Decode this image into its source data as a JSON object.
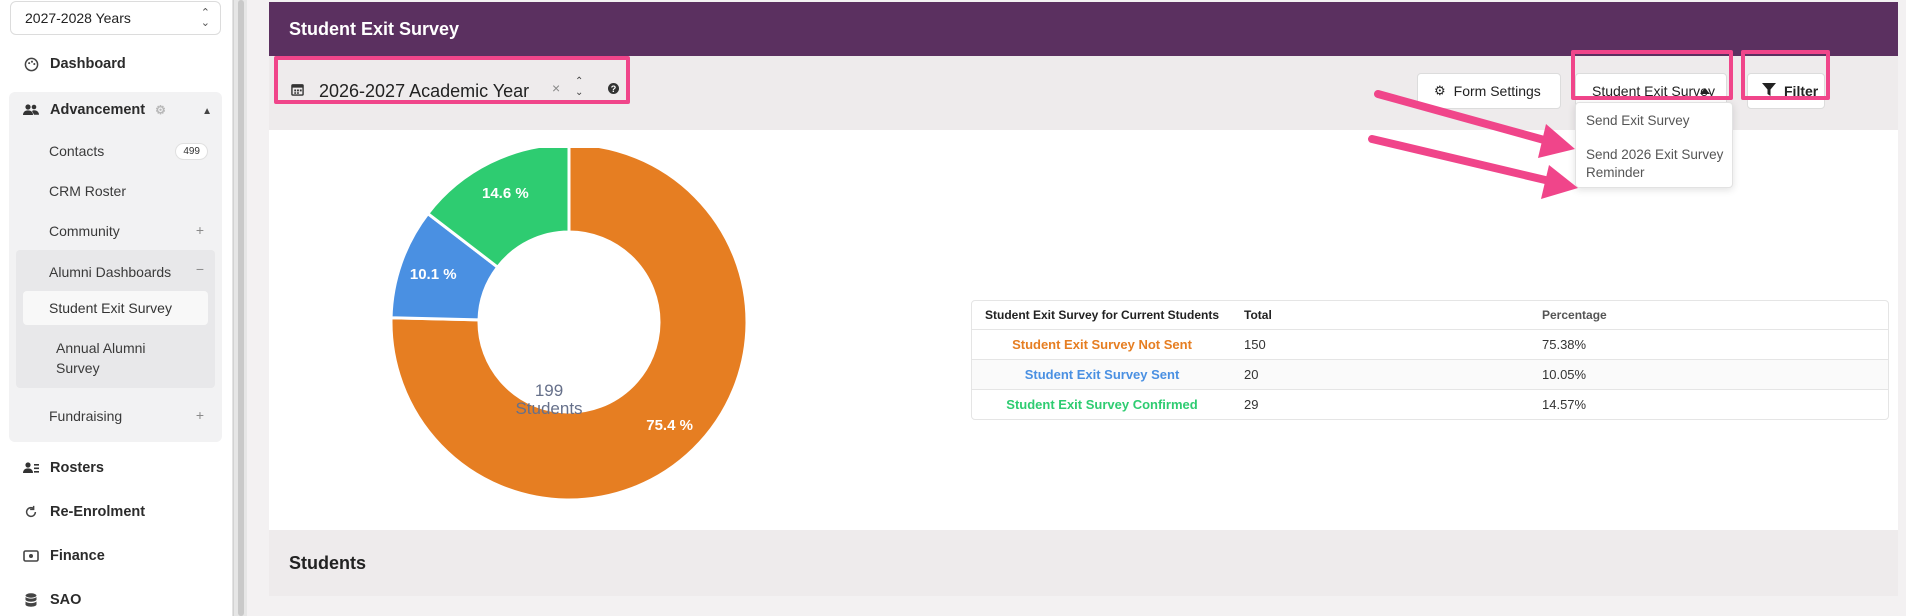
{
  "sidebar": {
    "year_select": "2027-2028 Years",
    "dashboard": "Dashboard",
    "advancement": "Advancement",
    "contacts": "Contacts",
    "contacts_count": "499",
    "crm_roster": "CRM Roster",
    "community": "Community",
    "alumni_dashboards": "Alumni Dashboards",
    "student_exit_survey": "Student Exit Survey",
    "annual_alumni_survey_line1": "Annual Alumni",
    "annual_alumni_survey_line2": "Survey",
    "fundraising": "Fundraising",
    "rosters": "Rosters",
    "re_enrolment": "Re-Enrolment",
    "finance": "Finance",
    "sao": "SAO"
  },
  "header": {
    "title": "Student Exit Survey"
  },
  "toolbar": {
    "academic_year": "2026-2027 Academic Year",
    "form_settings": "Form Settings",
    "survey_select": "Student Exit Survey",
    "filter": "Filter"
  },
  "dropdown": {
    "item1": "Send Exit Survey",
    "item2_line1": "Send 2026 Exit Survey",
    "item2_line2": "Reminder"
  },
  "chart_center": {
    "value": "199",
    "label": "Students"
  },
  "table": {
    "headers": [
      "Student Exit Survey for Current Students",
      "Total",
      "Percentage"
    ],
    "rows": [
      {
        "label": "Student Exit Survey Not Sent",
        "total": "150",
        "percentage": "75.38%"
      },
      {
        "label": "Student Exit Survey Sent",
        "total": "20",
        "percentage": "10.05%"
      },
      {
        "label": "Student Exit Survey Confirmed",
        "total": "29",
        "percentage": "14.57%"
      }
    ]
  },
  "students_section": {
    "title": "Students"
  },
  "colors": {
    "header": "#5b3060",
    "not_sent": "#e67e22",
    "sent": "#4a90e2",
    "confirmed": "#2ecc71",
    "highlight": "#f0458a"
  },
  "chart_data": {
    "type": "pie",
    "categories": [
      "Student Exit Survey Not Sent",
      "Student Exit Survey Sent",
      "Student Exit Survey Confirmed"
    ],
    "values": [
      150,
      20,
      29
    ],
    "labels": [
      "75.4 %",
      "10.1 %",
      "14.6 %"
    ]
  }
}
